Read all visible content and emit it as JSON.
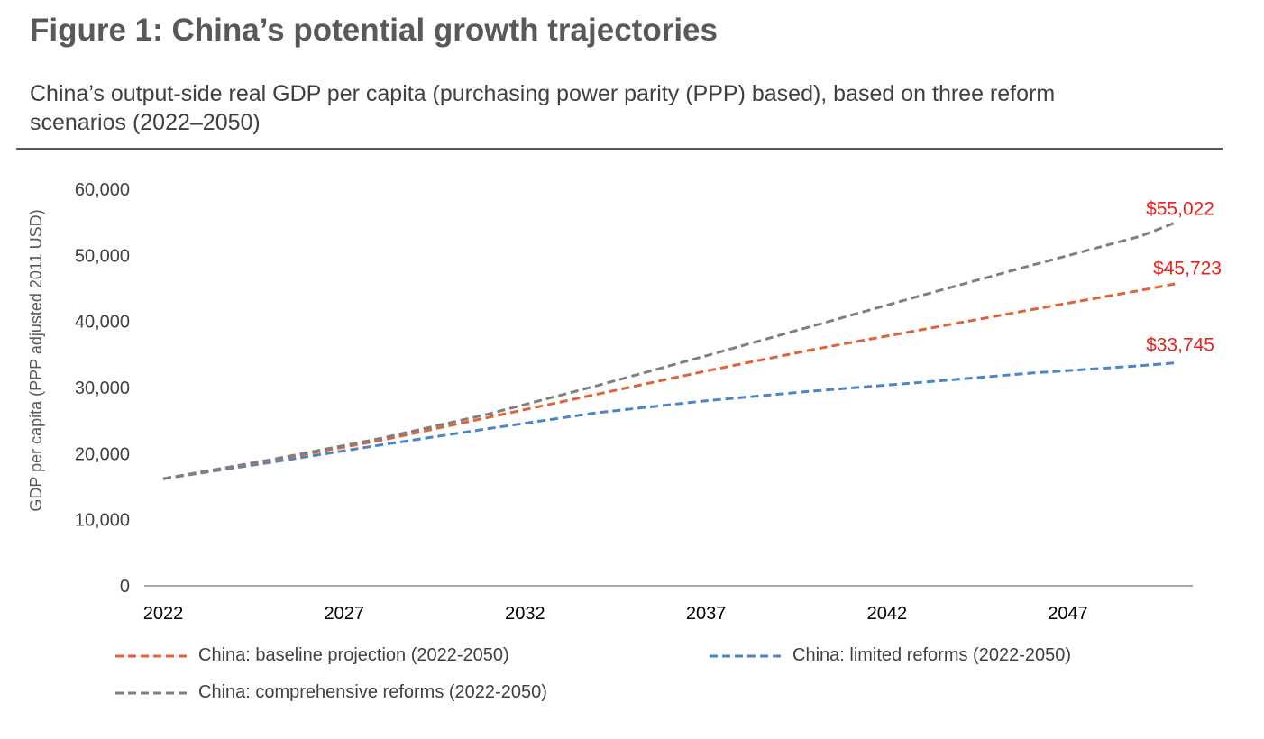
{
  "header": {
    "title": "Figure 1: China’s potential growth trajectories",
    "subtitle": "China’s output-side real GDP per capita (purchasing power parity (PPP) based), based on three reform scenarios (2022–2050)"
  },
  "chart_data": {
    "type": "line",
    "title": "Figure 1: China’s potential growth trajectories",
    "subtitle": "China’s output-side real GDP per capita (purchasing power parity (PPP) based), based on three reform scenarios (2022–2050)",
    "xlabel": "",
    "ylabel": "GDP per capita (PPP adjusted 2011 USD)",
    "xlim": [
      2022,
      2050
    ],
    "ylim": [
      0,
      60000
    ],
    "x_ticks": [
      "2022",
      "2027",
      "2032",
      "2037",
      "2042",
      "2047"
    ],
    "y_ticks": [
      "0",
      "10,000",
      "20,000",
      "30,000",
      "40,000",
      "50,000",
      "60,000"
    ],
    "grid": false,
    "legend_position": "bottom",
    "x": [
      2022,
      2025,
      2028,
      2031,
      2034,
      2037,
      2040,
      2043,
      2046,
      2049,
      2050
    ],
    "series": [
      {
        "name": "China: baseline projection (2022-2050)",
        "color": "#e06439",
        "style": "dashed",
        "values": [
          16200,
          19000,
          22000,
          25500,
          29000,
          32500,
          35800,
          38800,
          41800,
          44700,
          45723
        ],
        "end_label": "$45,723"
      },
      {
        "name": "China: limited reforms (2022-2050)",
        "color": "#4a86c8",
        "style": "dashed",
        "values": [
          16200,
          18700,
          21300,
          23800,
          26200,
          28000,
          29500,
          30800,
          32200,
          33300,
          33745
        ],
        "end_label": "$33,745"
      },
      {
        "name": "China: comprehensive reforms (2022-2050)",
        "color": "#7f7f7f",
        "style": "dashed",
        "values": [
          16200,
          19100,
          22300,
          26000,
          30300,
          34800,
          39400,
          44000,
          48500,
          52900,
          55022
        ],
        "end_label": "$55,022"
      }
    ],
    "annotation_color": "#e8231d"
  }
}
